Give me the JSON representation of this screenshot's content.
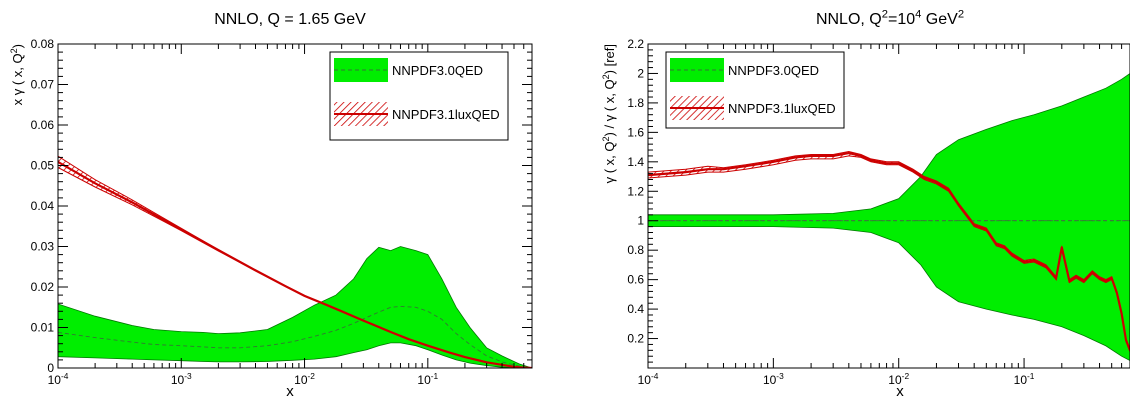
{
  "chart_data": [
    {
      "type": "area",
      "title": "NNLO, Q = 1.65 GeV",
      "xlabel": "x",
      "ylabel": "x γ ( x, Q",
      "ylabel_sup": "2",
      "ylabel_tail": ")",
      "xscale": "log",
      "xlim": [
        0.0001,
        0.7
      ],
      "ylim": [
        0,
        0.08
      ],
      "xticks": [
        {
          "v": 0.0001,
          "b": "10",
          "e": "-4"
        },
        {
          "v": 0.001,
          "b": "10",
          "e": "-3"
        },
        {
          "v": 0.01,
          "b": "10",
          "e": "-2"
        },
        {
          "v": 0.1,
          "b": "10",
          "e": "-1"
        }
      ],
      "yticks": [
        {
          "v": 0,
          "t": "0"
        },
        {
          "v": 0.01,
          "t": "0.01"
        },
        {
          "v": 0.02,
          "t": "0.02"
        },
        {
          "v": 0.03,
          "t": "0.03"
        },
        {
          "v": 0.04,
          "t": "0.04"
        },
        {
          "v": 0.05,
          "t": "0.05"
        },
        {
          "v": 0.06,
          "t": "0.06"
        },
        {
          "v": 0.07,
          "t": "0.07"
        },
        {
          "v": 0.08,
          "t": "0.08"
        }
      ],
      "legend_position": "top-right",
      "reference_line": null,
      "series": [
        {
          "name": "NNPDF3.0QED",
          "style": "green-band",
          "color": "#00ee00",
          "x": [
            0.0001,
            0.0002,
            0.0004,
            0.0006,
            0.001,
            0.0015,
            0.002,
            0.003,
            0.005,
            0.008,
            0.012,
            0.018,
            0.025,
            0.032,
            0.04,
            0.05,
            0.06,
            0.08,
            0.1,
            0.13,
            0.17,
            0.22,
            0.3,
            0.4,
            0.55,
            0.7
          ],
          "upper": [
            0.0158,
            0.0128,
            0.0105,
            0.0095,
            0.009,
            0.0088,
            0.0085,
            0.0087,
            0.0095,
            0.0125,
            0.0155,
            0.018,
            0.022,
            0.027,
            0.0298,
            0.029,
            0.03,
            0.029,
            0.028,
            0.022,
            0.015,
            0.01,
            0.005,
            0.003,
            0.001,
            0.0
          ],
          "lower": [
            0.0028,
            0.0025,
            0.0022,
            0.002,
            0.0018,
            0.0016,
            0.0015,
            0.0015,
            0.0016,
            0.0019,
            0.0022,
            0.0028,
            0.0038,
            0.0045,
            0.0055,
            0.0062,
            0.0062,
            0.0055,
            0.0045,
            0.0032,
            0.002,
            0.0012,
            0.0006,
            0.0002,
            0.0,
            0.0
          ],
          "central": [
            0.0088,
            0.0075,
            0.0064,
            0.0058,
            0.0055,
            0.0052,
            0.005,
            0.005,
            0.0055,
            0.0065,
            0.0078,
            0.0093,
            0.011,
            0.0125,
            0.0138,
            0.015,
            0.0152,
            0.015,
            0.014,
            0.012,
            0.0085,
            0.0058,
            0.003,
            0.0015,
            0.0005,
            0.0
          ]
        },
        {
          "name": "NNPDF3.1luxQED",
          "style": "red-hatched-band",
          "color": "#cc0000",
          "x": [
            0.0001,
            0.0002,
            0.0004,
            0.0007,
            0.001,
            0.002,
            0.004,
            0.007,
            0.01,
            0.015,
            0.02,
            0.03,
            0.05,
            0.07,
            0.1,
            0.15,
            0.2,
            0.3,
            0.4,
            0.5,
            0.6,
            0.7
          ],
          "upper": [
            0.0523,
            0.0465,
            0.0415,
            0.0372,
            0.0345,
            0.0292,
            0.0242,
            0.0203,
            0.0179,
            0.0156,
            0.014,
            0.0117,
            0.0089,
            0.0072,
            0.0056,
            0.0039,
            0.0028,
            0.0015,
            0.0008,
            0.0004,
            0.0001,
            0.0
          ],
          "lower": [
            0.0495,
            0.0447,
            0.0403,
            0.0364,
            0.0339,
            0.0289,
            0.024,
            0.0201,
            0.0178,
            0.0155,
            0.0139,
            0.0116,
            0.0088,
            0.0071,
            0.0055,
            0.0038,
            0.0027,
            0.0014,
            0.0007,
            0.0003,
            0.0001,
            0.0
          ],
          "central": [
            0.0509,
            0.0456,
            0.0409,
            0.0368,
            0.0342,
            0.0291,
            0.0241,
            0.0202,
            0.0178,
            0.0156,
            0.014,
            0.0117,
            0.0089,
            0.0071,
            0.0055,
            0.0038,
            0.0027,
            0.0014,
            0.0008,
            0.0003,
            0.0001,
            0.0
          ]
        }
      ]
    },
    {
      "type": "area",
      "title": "NNLO, Q",
      "title_parts": [
        {
          "t": "NNLO, Q"
        },
        {
          "t": "2",
          "sup": true
        },
        {
          "t": "=10"
        },
        {
          "t": "4",
          "sup": true
        },
        {
          "t": " GeV"
        },
        {
          "t": "2",
          "sup": true
        }
      ],
      "xlabel": "x",
      "ylabel": "γ ( x, Q",
      "ylabel_parts": [
        {
          "t": "γ ( x, Q"
        },
        {
          "t": "2",
          "sup": true
        },
        {
          "t": ") / γ ( x, Q"
        },
        {
          "t": "2",
          "sup": true
        },
        {
          "t": ") [ref]"
        }
      ],
      "xscale": "log",
      "xlim": [
        0.0001,
        0.7
      ],
      "ylim": [
        0,
        2.2
      ],
      "xticks": [
        {
          "v": 0.0001,
          "b": "10",
          "e": "-4"
        },
        {
          "v": 0.001,
          "b": "10",
          "e": "-3"
        },
        {
          "v": 0.01,
          "b": "10",
          "e": "-2"
        },
        {
          "v": 0.1,
          "b": "10",
          "e": "-1"
        }
      ],
      "yticks": [
        {
          "v": 0.2,
          "t": "0.2"
        },
        {
          "v": 0.4,
          "t": "0.4"
        },
        {
          "v": 0.6,
          "t": "0.6"
        },
        {
          "v": 0.8,
          "t": "0.8"
        },
        {
          "v": 1.0,
          "t": "1"
        },
        {
          "v": 1.2,
          "t": "1.2"
        },
        {
          "v": 1.4,
          "t": "1.4"
        },
        {
          "v": 1.6,
          "t": "1.6"
        },
        {
          "v": 1.8,
          "t": "1.8"
        },
        {
          "v": 2.0,
          "t": "2"
        },
        {
          "v": 2.2,
          "t": "2.2"
        }
      ],
      "legend_position": "top-left",
      "reference_line": 1.0,
      "series": [
        {
          "name": "NNPDF3.0QED",
          "style": "green-band",
          "color": "#00ee00",
          "x": [
            0.0001,
            0.0003,
            0.001,
            0.003,
            0.006,
            0.01,
            0.015,
            0.02,
            0.03,
            0.05,
            0.08,
            0.12,
            0.2,
            0.3,
            0.45,
            0.6,
            0.7
          ],
          "upper": [
            1.04,
            1.04,
            1.04,
            1.05,
            1.08,
            1.15,
            1.3,
            1.45,
            1.55,
            1.62,
            1.68,
            1.72,
            1.78,
            1.84,
            1.9,
            1.96,
            2.0
          ],
          "lower": [
            0.96,
            0.96,
            0.96,
            0.95,
            0.92,
            0.85,
            0.7,
            0.55,
            0.45,
            0.4,
            0.36,
            0.33,
            0.28,
            0.22,
            0.15,
            0.08,
            0.05
          ],
          "central": [
            1.0,
            1.0,
            1.0,
            1.0,
            1.0,
            1.0,
            1.0,
            1.0,
            1.0,
            1.0,
            1.0,
            1.0,
            1.0,
            1.0,
            1.0,
            1.0,
            1.0
          ]
        },
        {
          "name": "NNPDF3.1luxQED",
          "style": "red-hatched-band",
          "color": "#cc0000",
          "x": [
            0.0001,
            0.0002,
            0.0003,
            0.0004,
            0.0006,
            0.001,
            0.0015,
            0.002,
            0.003,
            0.004,
            0.005,
            0.006,
            0.008,
            0.01,
            0.013,
            0.016,
            0.02,
            0.025,
            0.03,
            0.04,
            0.05,
            0.06,
            0.07,
            0.08,
            0.1,
            0.12,
            0.15,
            0.18,
            0.2,
            0.23,
            0.26,
            0.3,
            0.35,
            0.4,
            0.45,
            0.5,
            0.55,
            0.6,
            0.65,
            0.7
          ],
          "upper": [
            1.33,
            1.35,
            1.37,
            1.36,
            1.38,
            1.41,
            1.44,
            1.45,
            1.45,
            1.47,
            1.45,
            1.42,
            1.4,
            1.4,
            1.35,
            1.3,
            1.27,
            1.22,
            1.12,
            0.98,
            0.95,
            0.85,
            0.83,
            0.78,
            0.73,
            0.74,
            0.7,
            0.62,
            0.83,
            0.6,
            0.63,
            0.6,
            0.66,
            0.62,
            0.6,
            0.62,
            0.52,
            0.38,
            0.2,
            0.13
          ],
          "lower": [
            1.29,
            1.31,
            1.33,
            1.33,
            1.35,
            1.38,
            1.41,
            1.42,
            1.42,
            1.44,
            1.43,
            1.4,
            1.38,
            1.38,
            1.33,
            1.28,
            1.25,
            1.2,
            1.1,
            0.96,
            0.93,
            0.83,
            0.81,
            0.76,
            0.71,
            0.72,
            0.68,
            0.6,
            0.8,
            0.58,
            0.61,
            0.58,
            0.64,
            0.6,
            0.58,
            0.6,
            0.5,
            0.36,
            0.18,
            0.11
          ],
          "central": [
            1.31,
            1.33,
            1.35,
            1.35,
            1.37,
            1.4,
            1.43,
            1.44,
            1.44,
            1.46,
            1.44,
            1.41,
            1.39,
            1.39,
            1.34,
            1.29,
            1.26,
            1.21,
            1.11,
            0.97,
            0.94,
            0.84,
            0.82,
            0.77,
            0.72,
            0.73,
            0.69,
            0.61,
            0.82,
            0.59,
            0.62,
            0.59,
            0.65,
            0.61,
            0.59,
            0.61,
            0.51,
            0.37,
            0.19,
            0.12
          ]
        }
      ]
    }
  ]
}
